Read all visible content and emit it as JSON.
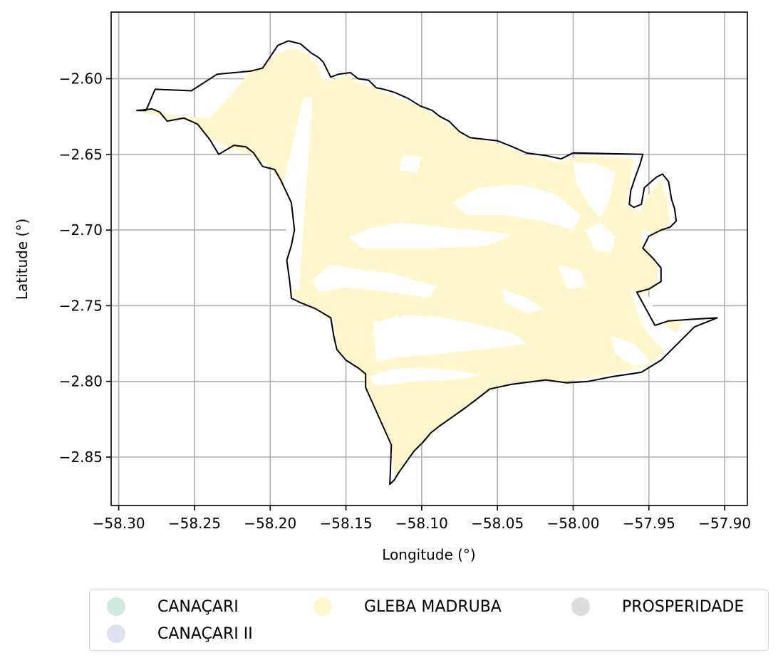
{
  "chart_data": {
    "type": "map",
    "xlabel": "Longitude (°)",
    "ylabel": "Latitude (°)",
    "xlim": [
      -58.305,
      -57.885
    ],
    "ylim": [
      -2.882,
      -2.556
    ],
    "grid": true,
    "x_ticks": [
      -58.3,
      -58.25,
      -58.2,
      -58.15,
      -58.1,
      -58.05,
      -58.0,
      -57.95,
      -57.9
    ],
    "y_ticks": [
      -2.6,
      -2.65,
      -2.7,
      -2.75,
      -2.8,
      -2.85
    ],
    "x_tick_labels": [
      "−58.30",
      "−58.25",
      "−58.20",
      "−58.15",
      "−58.10",
      "−58.05",
      "−58.00",
      "−57.95",
      "−57.90"
    ],
    "y_tick_labels": [
      "−2.60",
      "−2.65",
      "−2.70",
      "−2.75",
      "−2.80",
      "−2.85"
    ],
    "boundary": [
      [
        -58.288,
        -2.621
      ],
      [
        -58.282,
        -2.621
      ],
      [
        -58.276,
        -2.607
      ],
      [
        -58.252,
        -2.608
      ],
      [
        -58.235,
        -2.597
      ],
      [
        -58.213,
        -2.595
      ],
      [
        -58.205,
        -2.593
      ],
      [
        -58.195,
        -2.578
      ],
      [
        -58.188,
        -2.575
      ],
      [
        -58.18,
        -2.577
      ],
      [
        -58.173,
        -2.583
      ],
      [
        -58.168,
        -2.586
      ],
      [
        -58.165,
        -2.589
      ],
      [
        -58.16,
        -2.599
      ],
      [
        -58.155,
        -2.597
      ],
      [
        -58.147,
        -2.596
      ],
      [
        -58.142,
        -2.6
      ],
      [
        -58.135,
        -2.601
      ],
      [
        -58.13,
        -2.606
      ],
      [
        -58.125,
        -2.607
      ],
      [
        -58.118,
        -2.609
      ],
      [
        -58.109,
        -2.613
      ],
      [
        -58.101,
        -2.618
      ],
      [
        -58.093,
        -2.621
      ],
      [
        -58.088,
        -2.625
      ],
      [
        -58.082,
        -2.628
      ],
      [
        -58.075,
        -2.635
      ],
      [
        -58.068,
        -2.639
      ],
      [
        -58.05,
        -2.641
      ],
      [
        -58.04,
        -2.645
      ],
      [
        -58.031,
        -2.649
      ],
      [
        -58.017,
        -2.651
      ],
      [
        -58.008,
        -2.653
      ],
      [
        -58.0,
        -2.649
      ],
      [
        -57.954,
        -2.65
      ],
      [
        -57.956,
        -2.657
      ],
      [
        -57.959,
        -2.665
      ],
      [
        -57.962,
        -2.674
      ],
      [
        -57.963,
        -2.683
      ],
      [
        -57.96,
        -2.685
      ],
      [
        -57.955,
        -2.683
      ],
      [
        -57.953,
        -2.672
      ],
      [
        -57.945,
        -2.665
      ],
      [
        -57.941,
        -2.663
      ],
      [
        -57.937,
        -2.668
      ],
      [
        -57.935,
        -2.68
      ],
      [
        -57.933,
        -2.686
      ],
      [
        -57.932,
        -2.694
      ],
      [
        -57.936,
        -2.698
      ],
      [
        -57.942,
        -2.7
      ],
      [
        -57.95,
        -2.704
      ],
      [
        -57.954,
        -2.712
      ],
      [
        -57.947,
        -2.719
      ],
      [
        -57.942,
        -2.725
      ],
      [
        -57.942,
        -2.734
      ],
      [
        -57.95,
        -2.739
      ],
      [
        -57.958,
        -2.741
      ],
      [
        -57.946,
        -2.763
      ],
      [
        -57.937,
        -2.76
      ],
      [
        -57.922,
        -2.759
      ],
      [
        -57.905,
        -2.758
      ],
      [
        -57.92,
        -2.764
      ],
      [
        -57.932,
        -2.776
      ],
      [
        -57.942,
        -2.786
      ],
      [
        -57.955,
        -2.794
      ],
      [
        -57.975,
        -2.797
      ],
      [
        -57.99,
        -2.8
      ],
      [
        -58.004,
        -2.801
      ],
      [
        -58.018,
        -2.799
      ],
      [
        -58.041,
        -2.802
      ],
      [
        -58.055,
        -2.805
      ],
      [
        -58.064,
        -2.812
      ],
      [
        -58.072,
        -2.818
      ],
      [
        -58.079,
        -2.823
      ],
      [
        -58.089,
        -2.83
      ],
      [
        -58.094,
        -2.834
      ],
      [
        -58.099,
        -2.84
      ],
      [
        -58.105,
        -2.846
      ],
      [
        -58.11,
        -2.853
      ],
      [
        -58.115,
        -2.86
      ],
      [
        -58.118,
        -2.865
      ],
      [
        -58.121,
        -2.868
      ],
      [
        -58.12,
        -2.842
      ],
      [
        -58.137,
        -2.804
      ],
      [
        -58.137,
        -2.795
      ],
      [
        -58.142,
        -2.791
      ],
      [
        -58.15,
        -2.786
      ],
      [
        -58.156,
        -2.779
      ],
      [
        -58.158,
        -2.77
      ],
      [
        -58.16,
        -2.758
      ],
      [
        -58.17,
        -2.752
      ],
      [
        -58.18,
        -2.748
      ],
      [
        -58.186,
        -2.745
      ],
      [
        -58.187,
        -2.735
      ],
      [
        -58.189,
        -2.72
      ],
      [
        -58.186,
        -2.71
      ],
      [
        -58.184,
        -2.7
      ],
      [
        -58.186,
        -2.682
      ],
      [
        -58.193,
        -2.667
      ],
      [
        -58.197,
        -2.66
      ],
      [
        -58.205,
        -2.658
      ],
      [
        -58.211,
        -2.649
      ],
      [
        -58.216,
        -2.645
      ],
      [
        -58.224,
        -2.644
      ],
      [
        -58.234,
        -2.65
      ],
      [
        -58.24,
        -2.64
      ],
      [
        -58.248,
        -2.63
      ],
      [
        -58.257,
        -2.626
      ],
      [
        -58.268,
        -2.628
      ],
      [
        -58.273,
        -2.622
      ],
      [
        -58.278,
        -2.62
      ],
      [
        -58.288,
        -2.621
      ]
    ],
    "series": [
      {
        "name": "GLEBA MADRUBA",
        "color": "#fff6cc",
        "polygons": [
          [
            [
              -58.286,
              -2.622
            ],
            [
              -58.276,
              -2.621
            ],
            [
              -58.26,
              -2.625
            ],
            [
              -58.24,
              -2.626
            ],
            [
              -58.225,
              -2.61
            ],
            [
              -58.215,
              -2.597
            ],
            [
              -58.205,
              -2.592
            ],
            [
              -58.195,
              -2.583
            ],
            [
              -58.185,
              -2.58
            ],
            [
              -58.175,
              -2.584
            ],
            [
              -58.167,
              -2.593
            ],
            [
              -58.16,
              -2.601
            ],
            [
              -58.15,
              -2.598
            ],
            [
              -58.14,
              -2.603
            ],
            [
              -58.128,
              -2.608
            ],
            [
              -58.115,
              -2.613
            ],
            [
              -58.1,
              -2.619
            ],
            [
              -58.086,
              -2.628
            ],
            [
              -58.072,
              -2.638
            ],
            [
              -58.05,
              -2.643
            ],
            [
              -58.03,
              -2.651
            ],
            [
              -58.01,
              -2.655
            ],
            [
              -57.995,
              -2.651
            ],
            [
              -57.975,
              -2.652
            ],
            [
              -57.96,
              -2.653
            ],
            [
              -57.962,
              -2.666
            ],
            [
              -57.965,
              -2.684
            ],
            [
              -57.956,
              -2.688
            ],
            [
              -57.95,
              -2.676
            ],
            [
              -57.942,
              -2.667
            ],
            [
              -57.938,
              -2.68
            ],
            [
              -57.936,
              -2.695
            ],
            [
              -57.948,
              -2.707
            ],
            [
              -57.95,
              -2.714
            ],
            [
              -57.944,
              -2.725
            ],
            [
              -57.946,
              -2.738
            ],
            [
              -57.953,
              -2.742
            ],
            [
              -57.945,
              -2.761
            ],
            [
              -57.928,
              -2.76
            ],
            [
              -57.935,
              -2.775
            ],
            [
              -57.95,
              -2.79
            ],
            [
              -57.975,
              -2.795
            ],
            [
              -58.005,
              -2.8
            ],
            [
              -58.04,
              -2.8
            ],
            [
              -58.063,
              -2.811
            ],
            [
              -58.085,
              -2.827
            ],
            [
              -58.103,
              -2.845
            ],
            [
              -58.118,
              -2.863
            ],
            [
              -58.12,
              -2.843
            ],
            [
              -58.135,
              -2.806
            ],
            [
              -58.14,
              -2.793
            ],
            [
              -58.155,
              -2.781
            ],
            [
              -58.158,
              -2.761
            ],
            [
              -58.175,
              -2.75
            ],
            [
              -58.185,
              -2.743
            ],
            [
              -58.186,
              -2.715
            ],
            [
              -58.183,
              -2.7
            ],
            [
              -58.185,
              -2.683
            ],
            [
              -58.193,
              -2.668
            ],
            [
              -58.2,
              -2.658
            ],
            [
              -58.212,
              -2.65
            ],
            [
              -58.228,
              -2.646
            ],
            [
              -58.24,
              -2.639
            ],
            [
              -58.252,
              -2.628
            ],
            [
              -58.268,
              -2.626
            ],
            [
              -58.286,
              -2.622
            ]
          ]
        ]
      },
      {
        "name": "CANAÇARI",
        "color": "#cdeadb",
        "polygons": []
      },
      {
        "name": "CANAÇARI II",
        "color": "#dde2f0",
        "polygons": []
      },
      {
        "name": "PROSPERIDADE",
        "color": "#dcdcdc",
        "polygons": []
      }
    ],
    "voids": [
      [
        [
          -58.178,
          -2.613
        ],
        [
          -58.172,
          -2.612
        ],
        [
          -58.181,
          -2.74
        ],
        [
          -58.186,
          -2.738
        ],
        [
          -58.192,
          -2.672
        ]
      ],
      [
        [
          -58.172,
          -2.733
        ],
        [
          -58.16,
          -2.723
        ],
        [
          -58.14,
          -2.726
        ],
        [
          -58.118,
          -2.729
        ],
        [
          -58.105,
          -2.733
        ],
        [
          -58.09,
          -2.737
        ],
        [
          -58.095,
          -2.745
        ],
        [
          -58.12,
          -2.741
        ],
        [
          -58.15,
          -2.738
        ],
        [
          -58.168,
          -2.741
        ]
      ],
      [
        [
          -58.148,
          -2.705
        ],
        [
          -58.135,
          -2.699
        ],
        [
          -58.113,
          -2.695
        ],
        [
          -58.088,
          -2.698
        ],
        [
          -58.065,
          -2.7
        ],
        [
          -58.04,
          -2.703
        ],
        [
          -58.055,
          -2.71
        ],
        [
          -58.09,
          -2.712
        ],
        [
          -58.12,
          -2.712
        ],
        [
          -58.14,
          -2.712
        ]
      ],
      [
        [
          -58.132,
          -2.761
        ],
        [
          -58.11,
          -2.756
        ],
        [
          -58.085,
          -2.758
        ],
        [
          -58.06,
          -2.763
        ],
        [
          -58.04,
          -2.768
        ],
        [
          -58.03,
          -2.775
        ],
        [
          -58.06,
          -2.779
        ],
        [
          -58.09,
          -2.782
        ],
        [
          -58.115,
          -2.784
        ],
        [
          -58.13,
          -2.787
        ]
      ],
      [
        [
          -58.135,
          -2.797
        ],
        [
          -58.12,
          -2.792
        ],
        [
          -58.1,
          -2.791
        ],
        [
          -58.075,
          -2.793
        ],
        [
          -58.06,
          -2.796
        ],
        [
          -58.08,
          -2.799
        ],
        [
          -58.105,
          -2.8
        ],
        [
          -58.13,
          -2.803
        ]
      ],
      [
        [
          -58.08,
          -2.682
        ],
        [
          -58.062,
          -2.672
        ],
        [
          -58.035,
          -2.67
        ],
        [
          -58.012,
          -2.676
        ],
        [
          -57.995,
          -2.69
        ],
        [
          -58.0,
          -2.7
        ],
        [
          -58.02,
          -2.694
        ],
        [
          -58.045,
          -2.69
        ],
        [
          -58.07,
          -2.69
        ]
      ],
      [
        [
          -58.0,
          -2.655
        ],
        [
          -57.985,
          -2.656
        ],
        [
          -57.972,
          -2.662
        ],
        [
          -57.976,
          -2.68
        ],
        [
          -57.982,
          -2.692
        ],
        [
          -57.99,
          -2.683
        ],
        [
          -57.998,
          -2.668
        ]
      ],
      [
        [
          -57.992,
          -2.7
        ],
        [
          -57.982,
          -2.695
        ],
        [
          -57.972,
          -2.704
        ],
        [
          -57.975,
          -2.715
        ],
        [
          -57.986,
          -2.713
        ]
      ],
      [
        [
          -57.962,
          -2.74
        ],
        [
          -57.95,
          -2.744
        ],
        [
          -57.943,
          -2.76
        ],
        [
          -57.93,
          -2.77
        ],
        [
          -57.92,
          -2.782
        ],
        [
          -57.932,
          -2.786
        ],
        [
          -57.944,
          -2.776
        ],
        [
          -57.955,
          -2.762
        ]
      ],
      [
        [
          -57.975,
          -2.77
        ],
        [
          -57.96,
          -2.775
        ],
        [
          -57.948,
          -2.788
        ],
        [
          -57.96,
          -2.79
        ],
        [
          -57.972,
          -2.782
        ]
      ],
      [
        [
          -58.047,
          -2.739
        ],
        [
          -58.03,
          -2.745
        ],
        [
          -58.02,
          -2.752
        ],
        [
          -58.03,
          -2.755
        ],
        [
          -58.045,
          -2.748
        ]
      ],
      [
        [
          -58.01,
          -2.723
        ],
        [
          -57.995,
          -2.727
        ],
        [
          -57.992,
          -2.737
        ],
        [
          -58.004,
          -2.739
        ]
      ],
      [
        [
          -57.955,
          -2.7
        ],
        [
          -57.946,
          -2.702
        ],
        [
          -57.946,
          -2.712
        ],
        [
          -57.953,
          -2.712
        ]
      ],
      [
        [
          -58.112,
          -2.65
        ],
        [
          -58.1,
          -2.652
        ],
        [
          -58.103,
          -2.662
        ],
        [
          -58.115,
          -2.66
        ]
      ],
      [
        [
          -58.168,
          -2.59
        ],
        [
          -58.16,
          -2.592
        ],
        [
          -58.158,
          -2.602
        ],
        [
          -58.166,
          -2.6
        ]
      ]
    ]
  },
  "legend": {
    "items": [
      {
        "label": "CANAÇARI",
        "color": "#cdeadb"
      },
      {
        "label": "CANAÇARI II",
        "color": "#dde2f0"
      },
      {
        "label": "GLEBA MADRUBA",
        "color": "#fff6cc"
      },
      {
        "label": "PROSPERIDADE",
        "color": "#dcdcdc"
      }
    ]
  }
}
